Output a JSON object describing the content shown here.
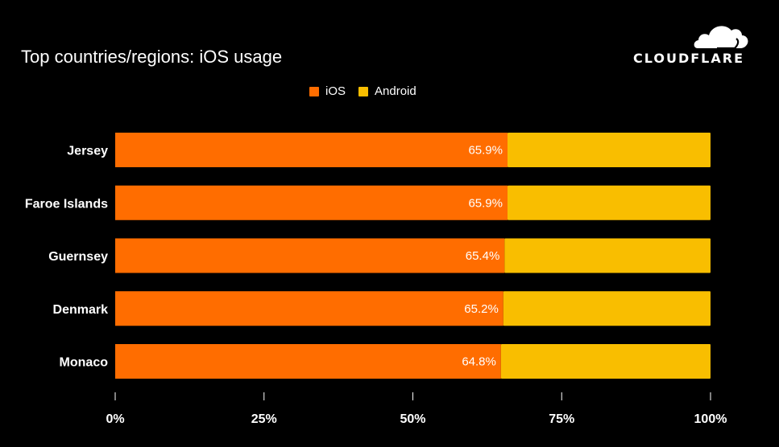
{
  "header": {
    "title": "Top countries/regions: iOS usage",
    "logo_text": "CLOUDFLARE"
  },
  "colors": {
    "ios": "#FF6D00",
    "android": "#F9BE00",
    "background": "#000000",
    "text": "#FFFFFF"
  },
  "chart_data": {
    "type": "bar",
    "orientation": "horizontal",
    "stacked": true,
    "title": "Top countries/regions: iOS usage",
    "categories": [
      "Jersey",
      "Faroe Islands",
      "Guernsey",
      "Denmark",
      "Monaco"
    ],
    "series": [
      {
        "name": "iOS",
        "values": [
          65.9,
          65.9,
          65.4,
          65.2,
          64.8
        ],
        "labels": [
          "65.9%",
          "65.9%",
          "65.4%",
          "65.2%",
          "64.8%"
        ]
      },
      {
        "name": "Android",
        "values": [
          34.1,
          34.1,
          34.6,
          34.8,
          35.2
        ]
      }
    ],
    "xlim": [
      0,
      100
    ],
    "xticks": [
      "0%",
      "25%",
      "50%",
      "75%",
      "100%"
    ],
    "legend_position": "top-center",
    "grid": false
  }
}
